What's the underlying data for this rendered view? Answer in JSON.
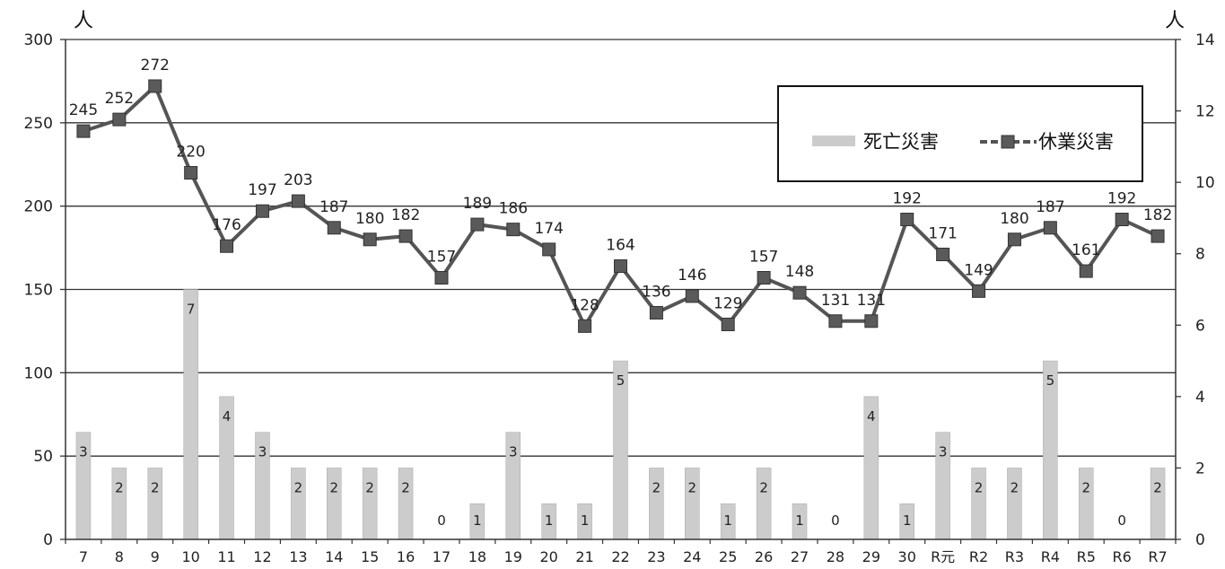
{
  "chart_data": {
    "type": "bar",
    "categories": [
      "7",
      "8",
      "9",
      "10",
      "11",
      "12",
      "13",
      "14",
      "15",
      "16",
      "17",
      "18",
      "19",
      "20",
      "21",
      "22",
      "23",
      "24",
      "25",
      "26",
      "27",
      "28",
      "29",
      "30",
      "R元",
      "R2",
      "R3",
      "R4",
      "R5",
      "R6",
      "R7"
    ],
    "series": [
      {
        "name": "死亡災害",
        "type": "bar",
        "axis": "right",
        "values": [
          3,
          2,
          2,
          7,
          4,
          3,
          2,
          2,
          2,
          2,
          0,
          1,
          3,
          1,
          1,
          5,
          2,
          2,
          1,
          2,
          1,
          0,
          4,
          1,
          3,
          2,
          2,
          5,
          2,
          0,
          2
        ]
      },
      {
        "name": "休業災害",
        "type": "line",
        "axis": "left",
        "values": [
          245,
          252,
          272,
          220,
          176,
          197,
          203,
          187,
          180,
          182,
          157,
          189,
          186,
          174,
          128,
          164,
          136,
          146,
          129,
          157,
          148,
          131,
          131,
          192,
          171,
          149,
          180,
          187,
          161,
          192,
          182
        ]
      }
    ],
    "y_left": {
      "unit": "人",
      "min": 0,
      "max": 300,
      "ticks": [
        "0",
        "50",
        "100",
        "150",
        "200",
        "250",
        "300"
      ]
    },
    "y_right": {
      "unit": "人",
      "min": 0,
      "max": 14,
      "ticks": [
        "0",
        "2",
        "4",
        "6",
        "8",
        "10",
        "12",
        "14"
      ]
    },
    "legend_position": "top-right",
    "grid": true,
    "colors": {
      "bar": "#cccccc",
      "line": "#555555",
      "marker": "#5a5a5a"
    }
  }
}
